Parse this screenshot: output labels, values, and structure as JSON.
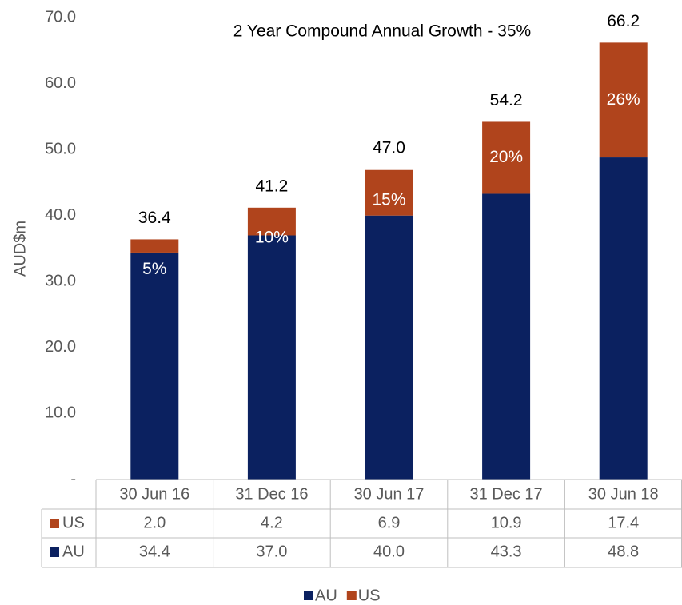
{
  "chart_data": {
    "type": "stacked_bar",
    "annotation": "2 Year Compound Annual Growth - 35%",
    "ylabel": "AUD$m",
    "categories": [
      "30 Jun 16",
      "31 Dec 16",
      "30 Jun 17",
      "31 Dec 17",
      "30 Jun 18"
    ],
    "series": [
      {
        "name": "AU",
        "color": "#0b2160",
        "values": [
          34.4,
          37.0,
          40.0,
          43.3,
          48.8
        ],
        "value_labels": [
          "34.4",
          "37.0",
          "40.0",
          "43.3",
          "48.8"
        ]
      },
      {
        "name": "US",
        "color": "#b0441c",
        "values": [
          2.0,
          4.2,
          6.9,
          10.9,
          17.4
        ],
        "value_labels": [
          "2.0",
          "4.2",
          "6.9",
          "10.9",
          "17.4"
        ]
      }
    ],
    "totals": {
      "values": [
        36.4,
        41.2,
        47.0,
        54.2,
        66.2
      ],
      "value_labels": [
        "36.4",
        "41.2",
        "47.0",
        "54.2",
        "66.2"
      ]
    },
    "shares": {
      "values": [
        5,
        10,
        15,
        20,
        26
      ],
      "value_labels": [
        "5%",
        "10%",
        "15%",
        "20%",
        "26%"
      ]
    },
    "ylim": [
      0,
      70
    ],
    "yticks": [
      {
        "value": 0,
        "label": "-"
      },
      {
        "value": 10,
        "label": "10.0"
      },
      {
        "value": 20,
        "label": "20.0"
      },
      {
        "value": 30,
        "label": "30.0"
      },
      {
        "value": 40,
        "label": "40.0"
      },
      {
        "value": 50,
        "label": "50.0"
      },
      {
        "value": 60,
        "label": "60.0"
      },
      {
        "value": 70,
        "label": "70.0"
      }
    ],
    "grid": false
  }
}
